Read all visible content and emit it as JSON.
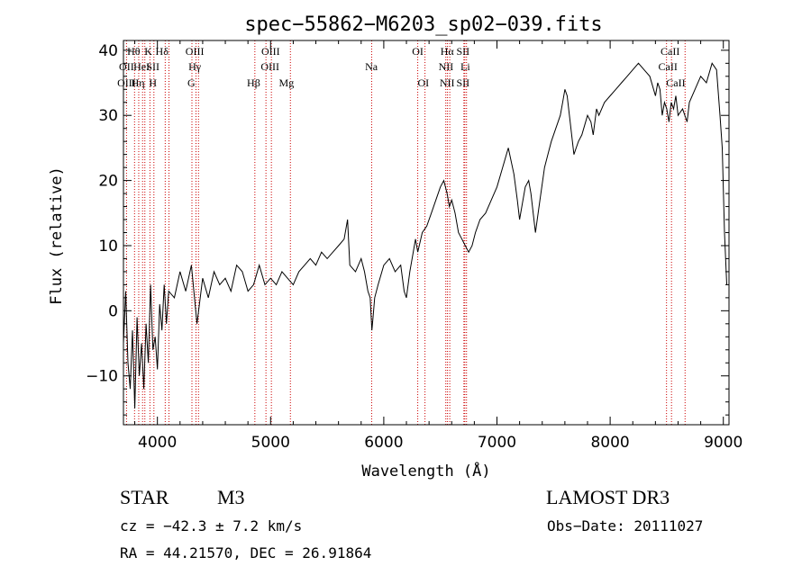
{
  "chart_data": {
    "type": "line",
    "title": "spec−55862−M6203_sp02−039.fits",
    "xlabel": "Wavelength (Å)",
    "ylabel": "Flux (relative)",
    "xlim": [
      3700,
      9050
    ],
    "ylim": [
      -17.5,
      41.5
    ],
    "xticks": [
      4000,
      5000,
      6000,
      7000,
      8000,
      9000
    ],
    "yticks": [
      -10,
      0,
      10,
      20,
      30,
      40
    ],
    "xtick_labels": [
      "4000",
      "5000",
      "6000",
      "7000",
      "8000",
      "9000"
    ],
    "ytick_labels": [
      "−10",
      "0",
      "10",
      "20",
      "30",
      "40"
    ],
    "line_color": "#000000",
    "marker_color": "#cc0000",
    "series": [
      {
        "name": "spectrum",
        "x": [
          3700,
          3720,
          3740,
          3760,
          3780,
          3800,
          3820,
          3840,
          3860,
          3880,
          3900,
          3920,
          3940,
          3960,
          3980,
          4000,
          4020,
          4040,
          4060,
          4080,
          4100,
          4150,
          4200,
          4250,
          4300,
          4350,
          4400,
          4450,
          4500,
          4550,
          4600,
          4650,
          4700,
          4750,
          4800,
          4850,
          4900,
          4950,
          5000,
          5050,
          5100,
          5150,
          5200,
          5250,
          5300,
          5350,
          5400,
          5450,
          5500,
          5550,
          5600,
          5650,
          5680,
          5700,
          5750,
          5800,
          5830,
          5860,
          5880,
          5895,
          5905,
          5920,
          5950,
          6000,
          6050,
          6100,
          6150,
          6180,
          6200,
          6230,
          6260,
          6280,
          6300,
          6340,
          6380,
          6420,
          6460,
          6500,
          6530,
          6560,
          6580,
          6600,
          6630,
          6660,
          6690,
          6720,
          6750,
          6780,
          6810,
          6850,
          6900,
          6950,
          7000,
          7050,
          7100,
          7150,
          7180,
          7200,
          7220,
          7250,
          7280,
          7300,
          7320,
          7340,
          7380,
          7420,
          7450,
          7480,
          7520,
          7560,
          7580,
          7600,
          7620,
          7640,
          7660,
          7680,
          7700,
          7720,
          7750,
          7800,
          7830,
          7850,
          7880,
          7900,
          7950,
          8000,
          8050,
          8100,
          8150,
          8200,
          8250,
          8300,
          8350,
          8400,
          8420,
          8440,
          8460,
          8480,
          8500,
          8520,
          8540,
          8560,
          8580,
          8600,
          8640,
          8680,
          8700,
          8750,
          8800,
          8850,
          8900,
          8940,
          8970,
          8990,
          9010,
          9030
        ],
        "y": [
          -5,
          3,
          -8,
          -12,
          -3,
          -15,
          -1,
          -10,
          -5,
          -12,
          -2,
          -8,
          4,
          -6,
          -4,
          -9,
          1,
          -3,
          4,
          -2,
          3,
          2,
          6,
          3,
          7,
          -2,
          5,
          2,
          6,
          4,
          5,
          3,
          7,
          6,
          3,
          4,
          7,
          4,
          5,
          4,
          6,
          5,
          4,
          6,
          7,
          8,
          7,
          9,
          8,
          9,
          10,
          11,
          14,
          7,
          6,
          8,
          6,
          3,
          2,
          -3,
          -1,
          2,
          4,
          7,
          8,
          6,
          7,
          3,
          2,
          6,
          9,
          11,
          9,
          12,
          13,
          15,
          17,
          19,
          20,
          18,
          16,
          17,
          15,
          12,
          11,
          10,
          9,
          10,
          12,
          14,
          15,
          17,
          19,
          22,
          25,
          21,
          17,
          14,
          16,
          19,
          20,
          18,
          15,
          12,
          17,
          22,
          24,
          26,
          28,
          30,
          32,
          34,
          33,
          30,
          27,
          24,
          25,
          26,
          27,
          30,
          29,
          27,
          31,
          30,
          32,
          33,
          34,
          35,
          36,
          37,
          38,
          37,
          36,
          33,
          35,
          34,
          30,
          32,
          31,
          29,
          32,
          31,
          33,
          30,
          31,
          29,
          32,
          34,
          36,
          35,
          38,
          37,
          30,
          25,
          12,
          4
        ]
      }
    ],
    "lines": [
      {
        "label": "Hθ",
        "wl": 3798
      },
      {
        "label": "OII",
        "wl": 3727
      },
      {
        "label": "OIII",
        "wl": 3869
      },
      {
        "label": "HeI",
        "wl": 3889
      },
      {
        "label": "K",
        "wl": 3934
      },
      {
        "label": "H",
        "wl": 3969
      },
      {
        "label": "Hη",
        "wl": 3835
      },
      {
        "label": "SII",
        "wl": 4069
      },
      {
        "label": "Hδ",
        "wl": 4102
      },
      {
        "label": "OIII",
        "wl": 4363
      },
      {
        "label": "Hγ",
        "wl": 4341
      },
      {
        "label": "G",
        "wl": 4305
      },
      {
        "label": "Hβ",
        "wl": 4861
      },
      {
        "label": "OIII",
        "wl": 4959
      },
      {
        "label": "OIII",
        "wl": 5007
      },
      {
        "label": "Mg",
        "wl": 5175
      },
      {
        "label": "Na",
        "wl": 5893
      },
      {
        "label": "OI",
        "wl": 6300
      },
      {
        "label": "OI",
        "wl": 6364
      },
      {
        "label": "Hα",
        "wl": 6563
      },
      {
        "label": "NII",
        "wl": 6548
      },
      {
        "label": "NII",
        "wl": 6583
      },
      {
        "label": "Li",
        "wl": 6708
      },
      {
        "label": "SII",
        "wl": 6716
      },
      {
        "label": "SII",
        "wl": 6731
      },
      {
        "label": "CaII",
        "wl": 8498
      },
      {
        "label": "CaII",
        "wl": 8542
      },
      {
        "label": "CaII",
        "wl": 8662
      }
    ],
    "line_labels": [
      {
        "text": "Hθ",
        "row": 0,
        "wl": 3790
      },
      {
        "text": "OII",
        "row": 1,
        "wl": 3727
      },
      {
        "text": "OIII",
        "row": 2,
        "wl": 3727
      },
      {
        "text": "HeI",
        "row": 1,
        "wl": 3860
      },
      {
        "text": "K",
        "row": 0,
        "wl": 3920
      },
      {
        "text": "Hη",
        "row": 2,
        "wl": 3828
      },
      {
        "text": "H",
        "row": 2,
        "wl": 3960
      },
      {
        "text": "SII",
        "row": 1,
        "wl": 3960
      },
      {
        "text": "Hδ",
        "row": 0,
        "wl": 4040
      },
      {
        "text": "OIII",
        "row": 0,
        "wl": 4330
      },
      {
        "text": "Hγ",
        "row": 1,
        "wl": 4330
      },
      {
        "text": "G",
        "row": 2,
        "wl": 4300
      },
      {
        "text": "Hβ",
        "row": 2,
        "wl": 4850
      },
      {
        "text": "OIII",
        "row": 0,
        "wl": 5000
      },
      {
        "text": "OIII",
        "row": 1,
        "wl": 4995
      },
      {
        "text": "Mg",
        "row": 2,
        "wl": 5140
      },
      {
        "text": "Na",
        "row": 1,
        "wl": 5890
      },
      {
        "text": "OI",
        "row": 0,
        "wl": 6300
      },
      {
        "text": "OI",
        "row": 2,
        "wl": 6350
      },
      {
        "text": "Hα",
        "row": 0,
        "wl": 6560
      },
      {
        "text": "SII",
        "row": 0,
        "wl": 6700
      },
      {
        "text": "NII",
        "row": 1,
        "wl": 6550
      },
      {
        "text": "Li",
        "row": 1,
        "wl": 6720
      },
      {
        "text": "NII",
        "row": 2,
        "wl": 6560
      },
      {
        "text": "SII",
        "row": 2,
        "wl": 6700
      },
      {
        "text": "CaII",
        "row": 0,
        "wl": 8530
      },
      {
        "text": "CaII",
        "row": 1,
        "wl": 8510
      },
      {
        "text": "CaII",
        "row": 2,
        "wl": 8580
      }
    ]
  },
  "info": {
    "object_class": "STAR",
    "subclass": "M3",
    "survey": "LAMOST DR3",
    "cz": "cz = −42.3 ± 7.2 km/s",
    "obs_date": "Obs−Date: 20111027",
    "coords": "RA =  44.21570, DEC =  26.91864"
  }
}
